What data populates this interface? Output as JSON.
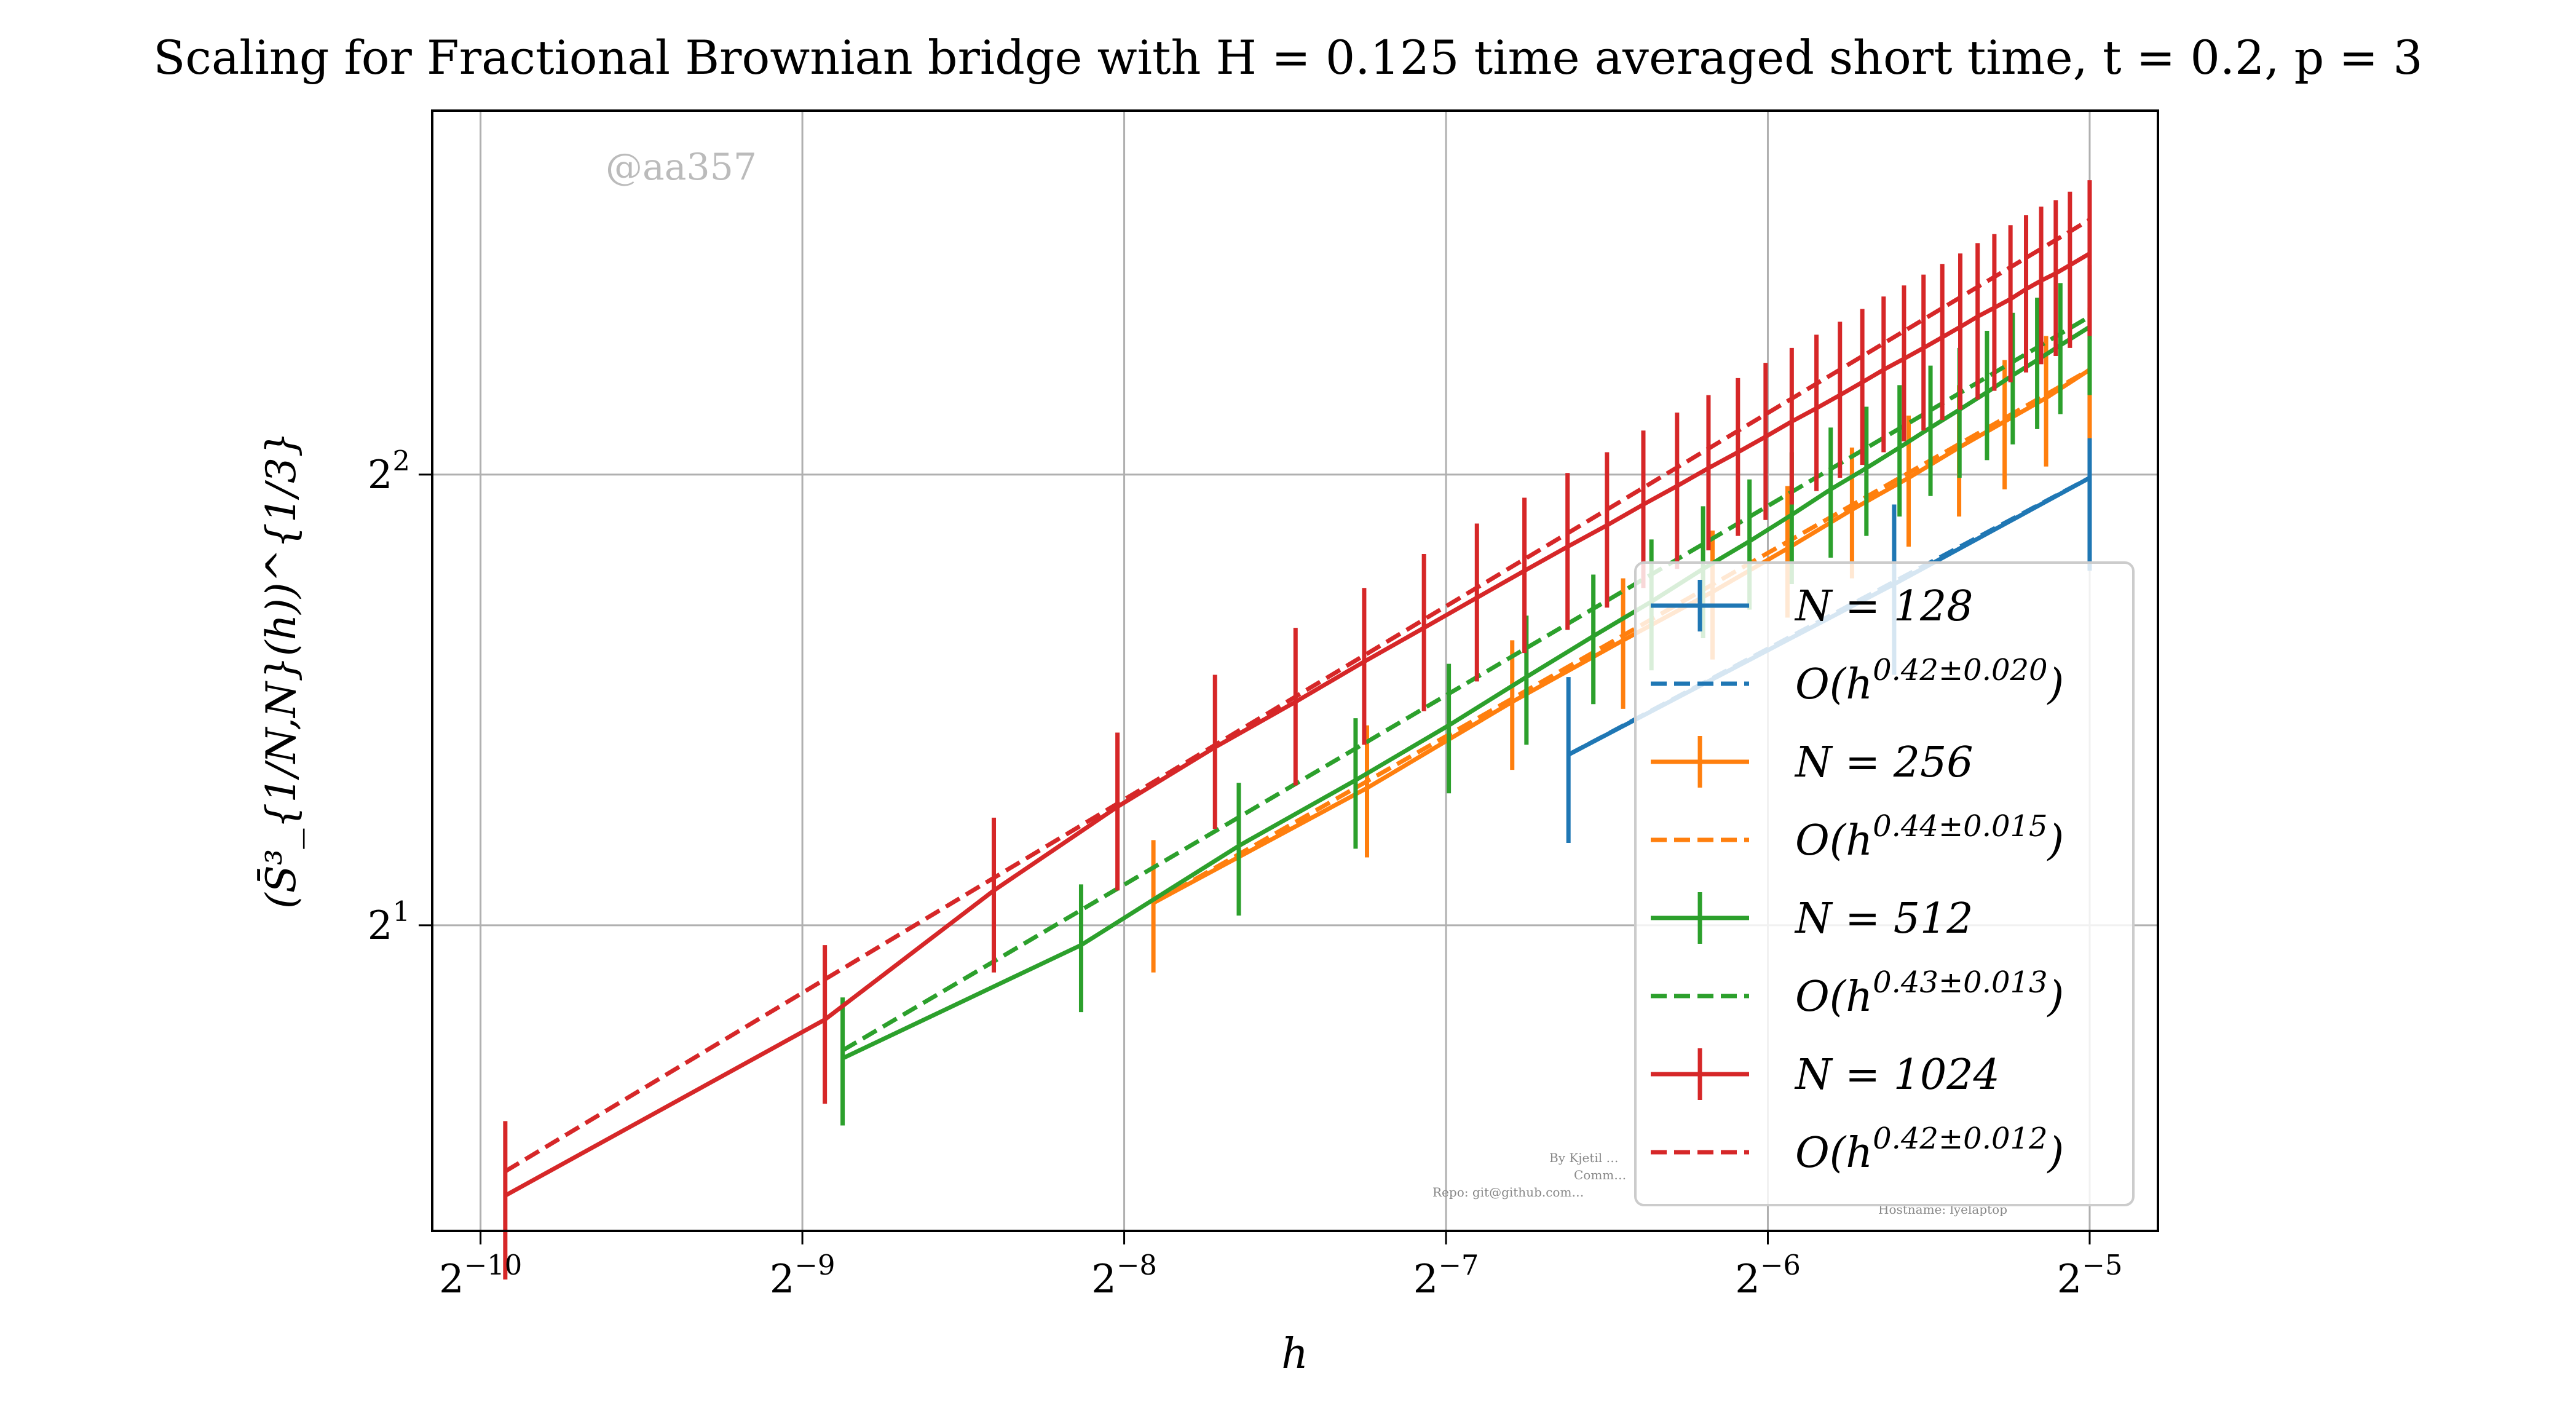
{
  "chart_data": {
    "type": "line",
    "title": "Scaling for Fractional Brownian bridge with H = 0.125 time averaged short time, t = 0.2, p = 3",
    "xlabel": "h",
    "ylabel": "(S̄³_{1/N,N}(h))^{1/3}",
    "x_scale": "log2",
    "y_scale": "log2",
    "xlim": [
      0.00088,
      0.0362
    ],
    "ylim": [
      1.25,
      7.0
    ],
    "x_ticks": [
      0.0009765625,
      0.001953125,
      0.00390625,
      0.0078125,
      0.015625,
      0.03125
    ],
    "x_tick_labels": [
      "2^-10",
      "2^-9",
      "2^-8",
      "2^-7",
      "2^-6",
      "2^-5"
    ],
    "y_ticks": [
      2,
      4
    ],
    "y_tick_labels": [
      "2^1",
      "2^2"
    ],
    "grid": true,
    "legend_position": "lower-right",
    "watermark": "@aa357",
    "footer_lines": [
      "By Kjetil …",
      "Comm…",
      "Repo: git@github.com…",
      "Hostname: lyelaptop"
    ],
    "series": [
      {
        "name": "N = 128",
        "color": "#1f77b4",
        "x": [
          0.01017,
          0.02051,
          0.03125
        ],
        "y": [
          2.6,
          3.38,
          3.98
        ],
        "yerr": [
          0.33,
          0.44,
          0.53
        ],
        "fit_label": "O(h^{0.42±0.020})",
        "fit_exponent": 0.42,
        "fit_x": [
          0.01017,
          0.03125
        ],
        "fit_y": [
          2.6,
          3.98
        ]
      },
      {
        "name": "N = 256",
        "color": "#ff7f0e",
        "x": [
          0.00416,
          0.00659,
          0.00901,
          0.01144,
          0.01387,
          0.0163,
          0.01873,
          0.02116,
          0.02359,
          0.02602,
          0.02845,
          0.03125
        ],
        "y": [
          2.07,
          2.47,
          2.82,
          3.1,
          3.34,
          3.57,
          3.79,
          3.98,
          4.17,
          4.34,
          4.5,
          4.7
        ],
        "yerr": [
          0.21,
          0.25,
          0.28,
          0.31,
          0.33,
          0.36,
          0.38,
          0.4,
          0.42,
          0.43,
          0.45,
          0.47
        ],
        "fit_label": "O(h^{0.44±0.015})",
        "fit_exponent": 0.44,
        "fit_x": [
          0.00416,
          0.03125
        ],
        "fit_y": [
          2.07,
          4.7
        ]
      },
      {
        "name": "N = 512",
        "color": "#2ca02c",
        "x": [
          0.00213,
          0.00356,
          0.005,
          0.00643,
          0.00786,
          0.00929,
          0.01073,
          0.01216,
          0.01359,
          0.01502,
          0.01645,
          0.01789,
          0.01932,
          0.02075,
          0.02218,
          0.02361,
          0.02505,
          0.02648,
          0.02791,
          0.02934,
          0.03125
        ],
        "y": [
          1.63,
          1.94,
          2.26,
          2.5,
          2.72,
          2.93,
          3.12,
          3.29,
          3.46,
          3.61,
          3.76,
          3.91,
          4.04,
          4.17,
          4.3,
          4.42,
          4.54,
          4.66,
          4.77,
          4.88,
          5.02
        ],
        "yerr": [
          0.16,
          0.19,
          0.23,
          0.25,
          0.27,
          0.29,
          0.31,
          0.33,
          0.35,
          0.36,
          0.38,
          0.39,
          0.4,
          0.42,
          0.43,
          0.44,
          0.45,
          0.47,
          0.48,
          0.49,
          0.5
        ],
        "fit_label": "O(h^{0.43±0.013})",
        "fit_exponent": 0.43,
        "fit_x": [
          0.00213,
          0.03125
        ],
        "fit_y": [
          1.65,
          5.1
        ]
      },
      {
        "name": "N = 1024",
        "color": "#d62728",
        "x": [
          0.00103,
          0.00205,
          0.00295,
          0.00385,
          0.00475,
          0.00565,
          0.00655,
          0.00745,
          0.00835,
          0.00925,
          0.01015,
          0.01105,
          0.01195,
          0.01285,
          0.01375,
          0.01465,
          0.01555,
          0.01645,
          0.01735,
          0.01825,
          0.01915,
          0.02005,
          0.02095,
          0.02185,
          0.02275,
          0.02365,
          0.02455,
          0.02545,
          0.02635,
          0.02725,
          0.02815,
          0.02905,
          0.02995,
          0.03125
        ],
        "y": [
          1.32,
          1.73,
          2.11,
          2.4,
          2.63,
          2.82,
          3.0,
          3.16,
          3.31,
          3.45,
          3.58,
          3.7,
          3.82,
          3.93,
          4.04,
          4.14,
          4.24,
          4.34,
          4.43,
          4.52,
          4.61,
          4.7,
          4.78,
          4.86,
          4.94,
          5.02,
          5.1,
          5.17,
          5.24,
          5.32,
          5.39,
          5.45,
          5.52,
          5.62
        ],
        "yerr": [
          0.16,
          0.21,
          0.25,
          0.29,
          0.31,
          0.34,
          0.36,
          0.38,
          0.4,
          0.41,
          0.43,
          0.44,
          0.46,
          0.47,
          0.48,
          0.5,
          0.51,
          0.52,
          0.53,
          0.54,
          0.55,
          0.56,
          0.57,
          0.58,
          0.59,
          0.6,
          0.61,
          0.62,
          0.63,
          0.64,
          0.65,
          0.65,
          0.66,
          0.67
        ],
        "fit_label": "O(h^{0.42±0.012})",
        "fit_exponent": 0.42,
        "fit_x": [
          0.00103,
          0.03125
        ],
        "fit_y": [
          1.37,
          5.92
        ]
      }
    ]
  }
}
